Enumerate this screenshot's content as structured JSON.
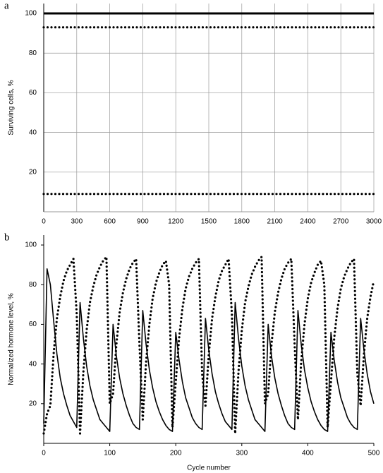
{
  "chart_data": [
    {
      "type": "line",
      "label": "a",
      "ylabel": "Surviving cells, %",
      "x": [
        0,
        3000
      ],
      "xlim": [
        0,
        3000
      ],
      "ylim": [
        0,
        105
      ],
      "xticks": [
        0,
        300,
        600,
        900,
        1200,
        1500,
        1800,
        2100,
        2400,
        2700,
        3000
      ],
      "yticks": [
        20,
        40,
        60,
        80,
        100
      ],
      "grid": true,
      "series": [
        {
          "color": "#000000",
          "style": "solid",
          "values": [
            100,
            100
          ]
        },
        {
          "color": "#000000",
          "style": "dotted",
          "values": [
            93,
            93
          ]
        },
        {
          "color": "#000000",
          "style": "dotted",
          "values": [
            9,
            9
          ]
        }
      ]
    },
    {
      "type": "line",
      "label": "b",
      "xlabel": "Cycle number",
      "ylabel": "Normalized hormone level, %",
      "x": [
        0,
        5,
        10,
        15,
        20,
        25,
        30,
        35,
        40,
        45,
        50,
        55,
        60,
        65,
        70,
        75,
        80,
        85,
        90,
        95,
        100,
        105,
        110,
        115,
        120,
        125,
        130,
        135,
        140,
        145,
        150,
        155,
        160,
        165,
        170,
        175,
        180,
        185,
        190,
        195,
        200,
        205,
        210,
        215,
        220,
        225,
        230,
        235,
        240,
        245,
        250,
        255,
        260,
        265,
        270,
        275,
        280,
        285,
        290,
        295,
        300,
        305,
        310,
        315,
        320,
        325,
        330,
        335,
        340,
        345,
        350,
        355,
        360,
        365,
        370,
        375,
        380,
        385,
        390,
        395,
        400,
        405,
        410,
        415,
        420,
        425,
        430,
        435,
        440,
        445,
        450,
        455,
        460,
        465,
        470,
        475,
        480,
        485,
        490,
        495,
        500
      ],
      "xlim": [
        0,
        500
      ],
      "ylim": [
        0,
        105
      ],
      "xticks": [
        0,
        100,
        200,
        300,
        400,
        500
      ],
      "yticks": [
        20,
        40,
        60,
        80,
        100
      ],
      "grid": false,
      "series": [
        {
          "color": "#000000",
          "style": "solid",
          "values": [
            10,
            88,
            80,
            62,
            45,
            33,
            25,
            19,
            14,
            11,
            8,
            71,
            53,
            39,
            29,
            22,
            17,
            12,
            10,
            8,
            6,
            60,
            44,
            33,
            25,
            19,
            14,
            10,
            8,
            7,
            67,
            50,
            37,
            28,
            21,
            16,
            12,
            9,
            7,
            6,
            56,
            42,
            31,
            23,
            18,
            13,
            10,
            8,
            7,
            63,
            47,
            35,
            26,
            20,
            15,
            11,
            9,
            7,
            71,
            53,
            39,
            29,
            22,
            17,
            12,
            10,
            8,
            6,
            60,
            44,
            33,
            25,
            19,
            14,
            10,
            8,
            7,
            67,
            50,
            37,
            28,
            21,
            16,
            12,
            9,
            7,
            6,
            56,
            42,
            31,
            23,
            18,
            13,
            10,
            8,
            7,
            63,
            47,
            35,
            26,
            20
          ]
        },
        {
          "color": "#000000",
          "style": "dotted",
          "values": [
            5,
            15,
            19,
            45,
            63,
            74,
            82,
            87,
            90,
            93,
            65,
            5,
            36,
            57,
            71,
            79,
            85,
            89,
            92,
            94,
            20,
            25,
            50,
            66,
            76,
            83,
            88,
            91,
            93,
            50,
            12,
            41,
            60,
            73,
            81,
            86,
            90,
            92,
            80,
            8,
            31,
            53,
            68,
            78,
            84,
            88,
            91,
            93,
            35,
            19,
            45,
            63,
            74,
            82,
            87,
            90,
            93,
            65,
            5,
            36,
            57,
            71,
            79,
            85,
            89,
            92,
            94,
            20,
            25,
            50,
            66,
            76,
            83,
            88,
            91,
            93,
            50,
            12,
            41,
            60,
            73,
            81,
            86,
            90,
            92,
            80,
            8,
            31,
            53,
            68,
            78,
            84,
            88,
            91,
            93,
            35,
            19,
            45,
            63,
            74,
            82
          ]
        }
      ]
    }
  ]
}
